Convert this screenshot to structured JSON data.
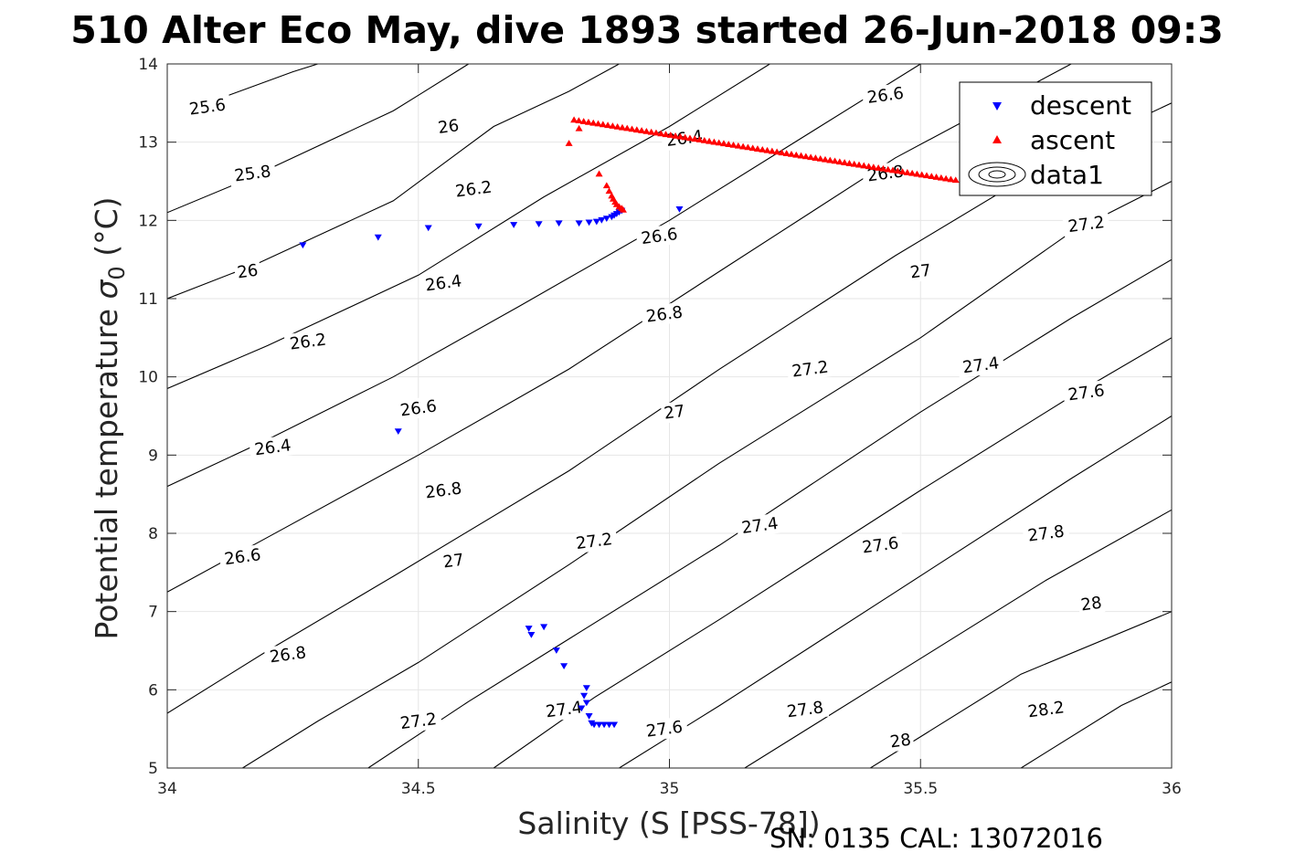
{
  "chart_data": {
    "type": "scatter",
    "title": "510 Alter Eco May, dive 1893 started 26-Jun-2018 09:3",
    "xlabel": "Salinity (S [PSS-78])",
    "ylabel_main": "Potential temperature ",
    "ylabel_sigma": "σ",
    "ylabel_sub": "0",
    "ylabel_unit": " (°C)",
    "footer": "SN: 0135  CAL: 13072016",
    "xlim": [
      34,
      36
    ],
    "ylim": [
      5,
      14
    ],
    "x_ticks": [
      34,
      34.5,
      35,
      35.5,
      36
    ],
    "x_tick_labels": [
      "34",
      "34.5",
      "35",
      "35.5",
      "36"
    ],
    "y_ticks": [
      5,
      6,
      7,
      8,
      9,
      10,
      11,
      12,
      13,
      14
    ],
    "y_tick_labels": [
      "5",
      "6",
      "7",
      "8",
      "9",
      "10",
      "11",
      "12",
      "13",
      "14"
    ],
    "grid": true,
    "legend_position": "top-right",
    "series": [
      {
        "name": "descent",
        "marker": "triangle-down",
        "color": "#0000ff",
        "points": [
          [
            34.27,
            11.68
          ],
          [
            34.42,
            11.78
          ],
          [
            34.52,
            11.9
          ],
          [
            34.62,
            11.92
          ],
          [
            34.69,
            11.94
          ],
          [
            34.74,
            11.95
          ],
          [
            34.78,
            11.96
          ],
          [
            34.82,
            11.96
          ],
          [
            34.84,
            11.97
          ],
          [
            34.855,
            11.98
          ],
          [
            34.865,
            12.0
          ],
          [
            34.875,
            12.02
          ],
          [
            34.885,
            12.04
          ],
          [
            34.89,
            12.06
          ],
          [
            34.895,
            12.08
          ],
          [
            34.9,
            12.1
          ],
          [
            34.905,
            12.12
          ],
          [
            35.02,
            12.14
          ],
          [
            34.46,
            9.3
          ],
          [
            34.72,
            6.78
          ],
          [
            34.725,
            6.7
          ],
          [
            34.75,
            6.8
          ],
          [
            34.775,
            6.5
          ],
          [
            34.79,
            6.3
          ],
          [
            34.835,
            6.02
          ],
          [
            34.83,
            5.92
          ],
          [
            34.835,
            5.83
          ],
          [
            34.825,
            5.76
          ],
          [
            34.84,
            5.66
          ],
          [
            34.845,
            5.57
          ],
          [
            34.85,
            5.55
          ],
          [
            34.86,
            5.55
          ],
          [
            34.87,
            5.55
          ],
          [
            34.88,
            5.55
          ],
          [
            34.89,
            5.55
          ]
        ]
      },
      {
        "name": "ascent",
        "marker": "triangle-up",
        "color": "#ff0000",
        "points": [
          [
            34.8,
            12.99
          ],
          [
            34.82,
            13.18
          ],
          [
            34.86,
            12.6
          ],
          [
            34.875,
            12.45
          ],
          [
            34.88,
            12.38
          ],
          [
            34.885,
            12.32
          ],
          [
            34.888,
            12.28
          ],
          [
            34.892,
            12.24
          ],
          [
            34.895,
            12.21
          ],
          [
            34.9,
            12.18
          ],
          [
            34.905,
            12.16
          ],
          [
            34.908,
            12.14
          ]
        ],
        "line_segment": {
          "x0": 34.81,
          "y0": 13.29,
          "x1": 35.57,
          "y1": 12.52,
          "n": 80
        }
      }
    ],
    "legend": [
      {
        "label": "descent",
        "marker": "triangle-down",
        "color": "#0000ff"
      },
      {
        "label": "ascent",
        "marker": "triangle-up",
        "color": "#ff0000"
      },
      {
        "label": "data1",
        "marker": "contour-icon",
        "color": "#000000"
      }
    ],
    "contours": {
      "slope": 0.85,
      "spacing": 0.2,
      "levels": [
        25.6,
        25.8,
        26.0,
        26.2,
        26.4,
        26.6,
        26.8,
        27.0,
        27.2,
        27.4,
        27.6,
        27.8,
        28.0,
        28.2
      ],
      "lines": [
        {
          "level": 25.6,
          "pts": [
            [
              34.08,
              13.5
            ],
            [
              34.25,
              13.9
            ],
            [
              34.3,
              14.0
            ]
          ]
        },
        {
          "level": 25.8,
          "pts": [
            [
              34.0,
              12.1
            ],
            [
              34.15,
              12.5
            ],
            [
              34.45,
              13.4
            ],
            [
              34.5,
              13.6
            ],
            [
              34.6,
              14.0
            ]
          ]
        },
        {
          "level": 26.0,
          "pts": [
            [
              34.0,
              11.0
            ],
            [
              34.18,
              11.45
            ],
            [
              34.45,
              12.25
            ],
            [
              34.65,
              13.2
            ],
            [
              34.8,
              13.65
            ],
            [
              34.9,
              14.0
            ]
          ]
        },
        {
          "level": 26.2,
          "pts": [
            [
              34.0,
              9.85
            ],
            [
              34.2,
              10.4
            ],
            [
              34.5,
              11.3
            ],
            [
              34.75,
              12.3
            ],
            [
              35.0,
              13.2
            ],
            [
              35.2,
              14.0
            ]
          ]
        },
        {
          "level": 26.4,
          "pts": [
            [
              34.0,
              8.6
            ],
            [
              34.2,
              9.2
            ],
            [
              34.45,
              10.0
            ],
            [
              34.7,
              10.9
            ],
            [
              35.0,
              12.0
            ],
            [
              35.3,
              13.2
            ],
            [
              35.5,
              14.0
            ]
          ]
        },
        {
          "level": 26.6,
          "pts": [
            [
              34.0,
              7.25
            ],
            [
              34.2,
              7.95
            ],
            [
              34.5,
              9.0
            ],
            [
              34.8,
              10.1
            ],
            [
              35.1,
              11.35
            ],
            [
              35.45,
              12.8
            ],
            [
              35.8,
              14.0
            ]
          ]
        },
        {
          "level": 26.8,
          "pts": [
            [
              34.0,
              5.7
            ],
            [
              34.2,
              6.5
            ],
            [
              34.45,
              7.45
            ],
            [
              34.8,
              8.8
            ],
            [
              35.1,
              10.1
            ],
            [
              35.45,
              11.55
            ],
            [
              35.8,
              12.9
            ],
            [
              36.0,
              13.5
            ]
          ]
        },
        {
          "level": 27.0,
          "pts": [
            [
              34.15,
              5.0
            ],
            [
              34.3,
              5.6
            ],
            [
              34.5,
              6.35
            ],
            [
              34.8,
              7.6
            ],
            [
              35.1,
              8.9
            ],
            [
              35.5,
              10.5
            ],
            [
              35.8,
              11.85
            ],
            [
              36.0,
              12.5
            ]
          ]
        },
        {
          "level": 27.2,
          "pts": [
            [
              34.4,
              5.0
            ],
            [
              34.6,
              5.85
            ],
            [
              34.8,
              6.65
            ],
            [
              35.1,
              7.85
            ],
            [
              35.5,
              9.55
            ],
            [
              35.8,
              10.75
            ],
            [
              36.0,
              11.5
            ]
          ]
        },
        {
          "level": 27.4,
          "pts": [
            [
              34.65,
              5.0
            ],
            [
              34.85,
              5.9
            ],
            [
              35.1,
              6.9
            ],
            [
              35.5,
              8.55
            ],
            [
              35.8,
              9.75
            ],
            [
              36.0,
              10.5
            ]
          ]
        },
        {
          "level": 27.6,
          "pts": [
            [
              34.9,
              5.0
            ],
            [
              35.1,
              5.8
            ],
            [
              35.45,
              7.25
            ],
            [
              35.8,
              8.7
            ],
            [
              36.0,
              9.5
            ]
          ]
        },
        {
          "level": 27.8,
          "pts": [
            [
              35.15,
              5.0
            ],
            [
              35.45,
              6.2
            ],
            [
              35.75,
              7.4
            ],
            [
              36.0,
              8.3
            ]
          ]
        },
        {
          "level": 28.0,
          "pts": [
            [
              35.4,
              5.0
            ],
            [
              35.7,
              6.2
            ],
            [
              36.0,
              7.0
            ]
          ]
        },
        {
          "level": 28.2,
          "pts": [
            [
              35.7,
              5.0
            ],
            [
              35.9,
              5.8
            ],
            [
              36.0,
              6.1
            ]
          ]
        }
      ],
      "labels": [
        {
          "text": "25.6",
          "x": 34.08,
          "y": 13.45
        },
        {
          "text": "25.8",
          "x": 34.17,
          "y": 12.6
        },
        {
          "text": "26",
          "x": 34.16,
          "y": 11.35
        },
        {
          "text": "26.2",
          "x": 34.28,
          "y": 10.45
        },
        {
          "text": "26.4",
          "x": 34.21,
          "y": 9.1
        },
        {
          "text": "26.6",
          "x": 34.15,
          "y": 7.7
        },
        {
          "text": "26.8",
          "x": 34.24,
          "y": 6.45
        },
        {
          "text": "26",
          "x": 34.56,
          "y": 13.2
        },
        {
          "text": "26.2",
          "x": 34.61,
          "y": 12.4
        },
        {
          "text": "26.4",
          "x": 34.55,
          "y": 11.2
        },
        {
          "text": "26.6",
          "x": 34.5,
          "y": 9.6
        },
        {
          "text": "26.8",
          "x": 34.55,
          "y": 8.55
        },
        {
          "text": "27",
          "x": 34.57,
          "y": 7.65
        },
        {
          "text": "27.2",
          "x": 34.5,
          "y": 5.6
        },
        {
          "text": "27.2",
          "x": 34.85,
          "y": 7.9
        },
        {
          "text": "27.4",
          "x": 34.79,
          "y": 5.75
        },
        {
          "text": "27",
          "x": 35.01,
          "y": 9.55
        },
        {
          "text": "26.8",
          "x": 34.99,
          "y": 10.8
        },
        {
          "text": "26.6",
          "x": 34.98,
          "y": 11.8
        },
        {
          "text": "26.4",
          "x": 35.03,
          "y": 13.05
        },
        {
          "text": "27.2",
          "x": 35.28,
          "y": 10.1
        },
        {
          "text": "27.4",
          "x": 35.18,
          "y": 8.1
        },
        {
          "text": "27.6",
          "x": 34.99,
          "y": 5.5
        },
        {
          "text": "26.6",
          "x": 35.43,
          "y": 13.6
        },
        {
          "text": "26.8",
          "x": 35.43,
          "y": 12.6
        },
        {
          "text": "27",
          "x": 35.5,
          "y": 11.35
        },
        {
          "text": "27.4",
          "x": 35.62,
          "y": 10.15
        },
        {
          "text": "27.6",
          "x": 35.42,
          "y": 7.85
        },
        {
          "text": "27.8",
          "x": 35.27,
          "y": 5.75
        },
        {
          "text": "28",
          "x": 35.46,
          "y": 5.35
        },
        {
          "text": "27.2",
          "x": 35.83,
          "y": 11.95
        },
        {
          "text": "27.6",
          "x": 35.83,
          "y": 9.8
        },
        {
          "text": "27.8",
          "x": 35.75,
          "y": 8.0
        },
        {
          "text": "28",
          "x": 35.84,
          "y": 7.1
        },
        {
          "text": "28.2",
          "x": 35.75,
          "y": 5.75
        }
      ]
    }
  }
}
